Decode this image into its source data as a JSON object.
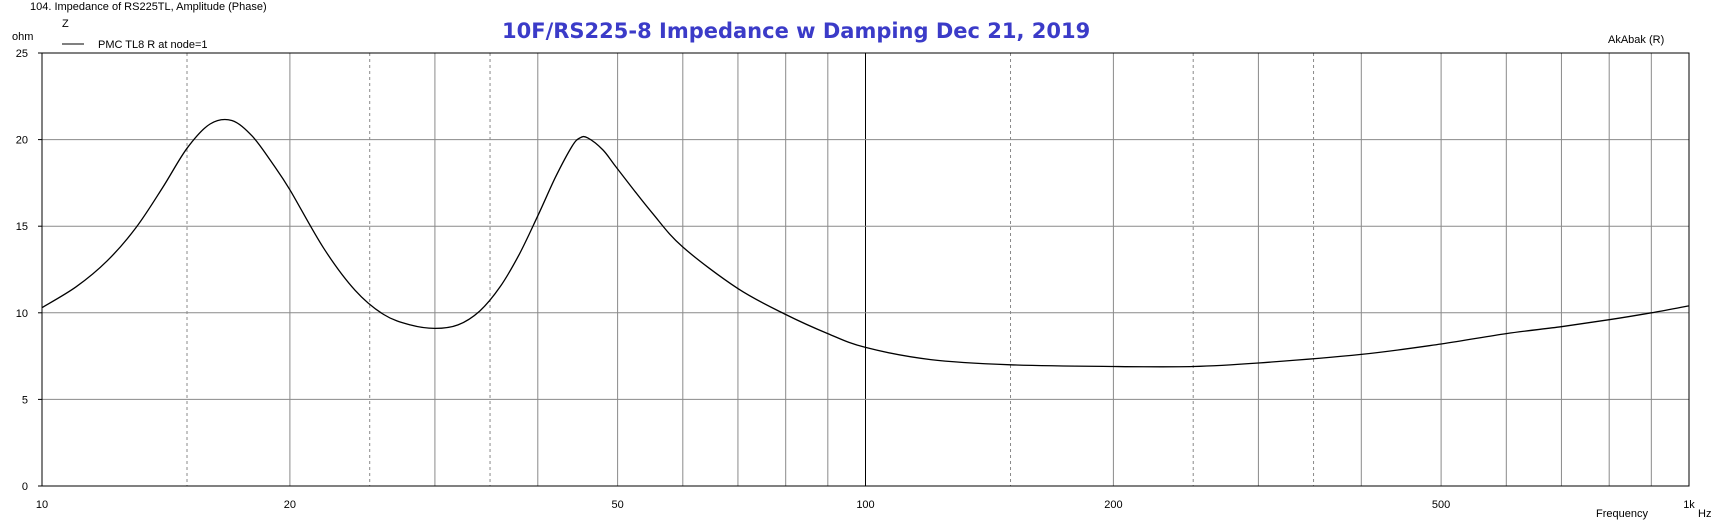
{
  "window": {
    "caption": "104. Impedance of RS225TL, Amplitude (Phase)",
    "z_label": "Z",
    "watermark": "AkAbak (R)"
  },
  "chart_data": {
    "type": "line",
    "title": "10F/RS225-8  Impedance w Damping  Dec 21, 2019",
    "xlabel": "Frequency",
    "x_unit": "Hz",
    "ylabel": "ohm",
    "x_scale": "log",
    "xlim": [
      10,
      1000
    ],
    "ylim": [
      0,
      25
    ],
    "grid": true,
    "legend_position": "top-left",
    "x_ticks": [
      "10",
      "20",
      "50",
      "100",
      "200",
      "500",
      "1k"
    ],
    "x_tick_values": [
      10,
      20,
      50,
      100,
      200,
      500,
      1000
    ],
    "y_ticks": [
      "0",
      "5",
      "10",
      "15",
      "20",
      "25"
    ],
    "y_tick_values": [
      0,
      5,
      10,
      15,
      20,
      25
    ],
    "series": [
      {
        "name": "PMC TL8 R at node=1",
        "color": "#000000",
        "x": [
          10,
          11,
          12,
          13,
          14,
          15,
          16,
          17,
          18,
          19,
          20,
          22,
          24,
          26,
          28,
          30,
          32,
          34,
          36,
          38,
          40,
          42,
          44,
          45,
          46,
          48,
          50,
          55,
          60,
          70,
          80,
          90,
          100,
          120,
          150,
          200,
          250,
          300,
          400,
          500,
          600,
          700,
          800,
          900,
          1000
        ],
        "y": [
          10.3,
          11.5,
          13.0,
          14.9,
          17.2,
          19.5,
          20.9,
          21.1,
          20.2,
          18.7,
          17.1,
          13.7,
          11.3,
          9.9,
          9.3,
          9.1,
          9.3,
          10.1,
          11.5,
          13.4,
          15.6,
          17.8,
          19.6,
          20.1,
          20.1,
          19.4,
          18.3,
          15.8,
          13.8,
          11.4,
          9.9,
          8.8,
          8.0,
          7.3,
          7.0,
          6.9,
          6.9,
          7.1,
          7.6,
          8.2,
          8.8,
          9.2,
          9.6,
          10.0,
          10.4
        ]
      }
    ]
  }
}
